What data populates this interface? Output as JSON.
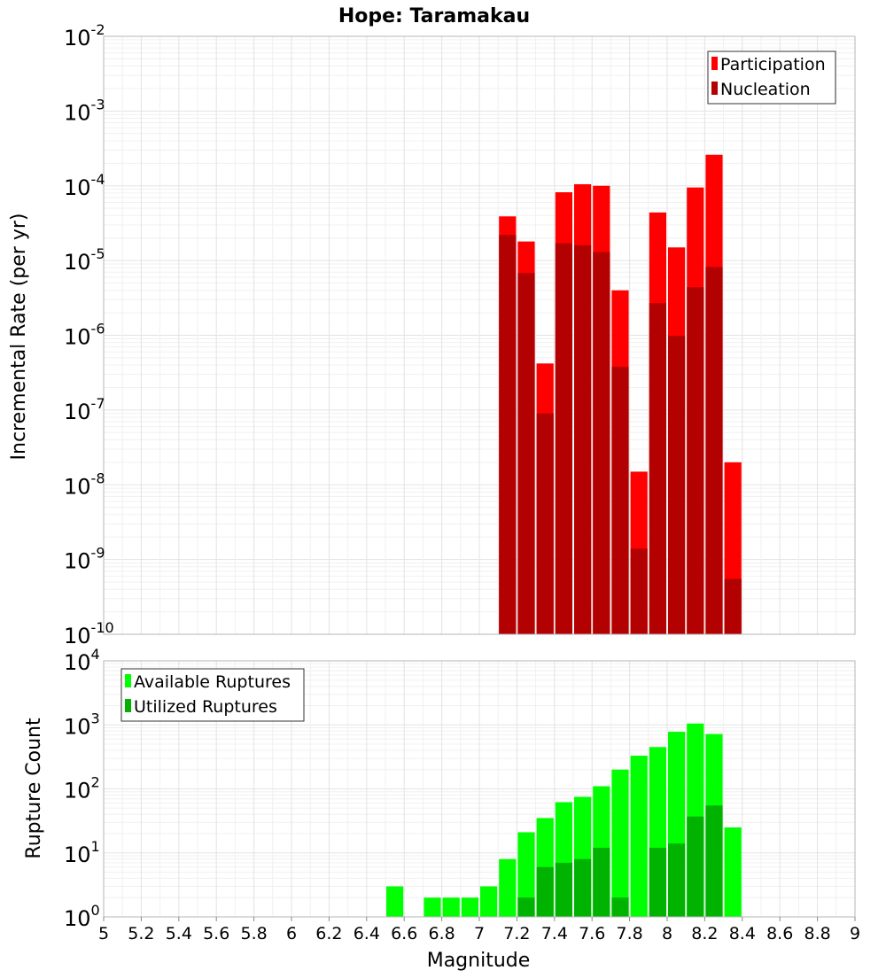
{
  "chart_data": [
    {
      "type": "bar",
      "title": "Hope: Taramakau",
      "ylabel": "Incremental Rate (per yr)",
      "yscale": "log",
      "ylim": [
        1e-10,
        0.01
      ],
      "y_tick_exponents": [
        "-10",
        "-9",
        "-8",
        "-7",
        "-6",
        "-5",
        "-4",
        "-3",
        "-2"
      ],
      "xlim": [
        5,
        9
      ],
      "legend_position": "top-right",
      "bar_layout": "overlaid",
      "x": [
        7.1,
        7.2,
        7.3,
        7.4,
        7.5,
        7.6,
        7.7,
        7.8,
        7.9,
        8.0,
        8.1,
        8.2,
        8.3
      ],
      "series": [
        {
          "name": "Participation",
          "color": "#ff0000",
          "values": [
            3.9e-05,
            1.8e-05,
            4.2e-07,
            8.2e-05,
            0.000105,
            0.0001,
            4e-06,
            1.5e-08,
            4.4e-05,
            1.5e-05,
            9.5e-05,
            0.00026,
            2e-08
          ]
        },
        {
          "name": "Nucleation",
          "color": "#b30000",
          "values": [
            2.2e-05,
            6.8e-06,
            9e-08,
            1.7e-05,
            1.6e-05,
            1.3e-05,
            3.8e-07,
            1.4e-09,
            2.7e-06,
            9.8e-07,
            4.4e-06,
            8.2e-06,
            5.5e-10
          ]
        }
      ]
    },
    {
      "type": "bar",
      "xlabel": "Magnitude",
      "ylabel": "Rupture Count",
      "yscale": "log",
      "ylim": [
        1,
        10000
      ],
      "y_tick_exponents": [
        "0",
        "1",
        "2",
        "3",
        "4"
      ],
      "xlim": [
        5,
        9
      ],
      "x_ticks": [
        "5",
        "5.2",
        "5.4",
        "5.6",
        "5.8",
        "6",
        "6.2",
        "6.4",
        "6.6",
        "6.8",
        "7",
        "7.2",
        "7.4",
        "7.6",
        "7.8",
        "8",
        "8.2",
        "8.4",
        "8.6",
        "8.8",
        "9"
      ],
      "legend_position": "top-left",
      "bar_layout": "overlaid",
      "x": [
        6.5,
        6.6,
        6.7,
        6.8,
        6.9,
        7.0,
        7.1,
        7.2,
        7.3,
        7.4,
        7.5,
        7.6,
        7.7,
        7.8,
        7.9,
        8.0,
        8.1,
        8.2,
        8.3
      ],
      "series": [
        {
          "name": "Available Ruptures",
          "color": "#00ff00",
          "values": [
            3,
            0,
            2,
            2,
            2,
            3,
            8,
            21,
            35,
            62,
            75,
            110,
            200,
            330,
            450,
            780,
            1050,
            720,
            25
          ]
        },
        {
          "name": "Utilized Ruptures",
          "color": "#00b300",
          "values": [
            0,
            0,
            0,
            0,
            0,
            0,
            1,
            2,
            6,
            7,
            8,
            12,
            2,
            1,
            12,
            14,
            37,
            55,
            1
          ]
        }
      ]
    }
  ]
}
